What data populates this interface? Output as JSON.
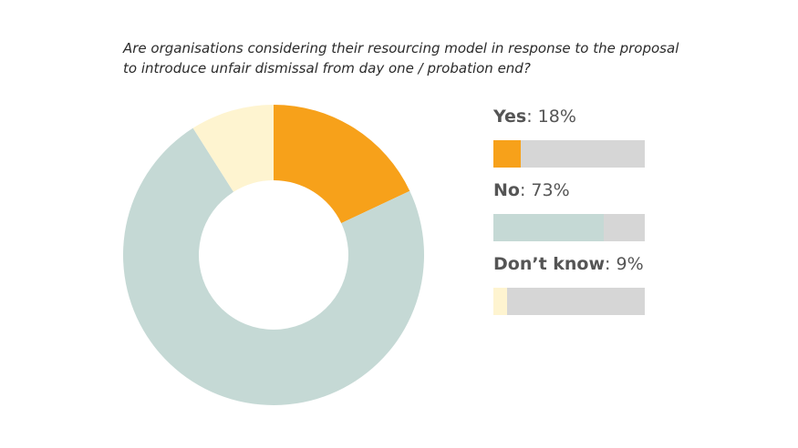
{
  "chart_data": {
    "type": "pie",
    "title": "Are organisations considering their resourcing model in response to the proposal to introduce unfair dismissal from day one / probation end?",
    "unit": "%",
    "slices": [
      {
        "label": "Yes",
        "value": 18,
        "value_label": ": 18%",
        "color": "#f7a11a"
      },
      {
        "label": "No",
        "value": 73,
        "value_label": ": 73%",
        "color": "#c5d9d5"
      },
      {
        "label": "Don’t know",
        "value": 9,
        "value_label": ": 9%",
        "color": "#fef4d0"
      }
    ],
    "legend_position": "right",
    "bar_track_color": "#d6d6d6"
  }
}
